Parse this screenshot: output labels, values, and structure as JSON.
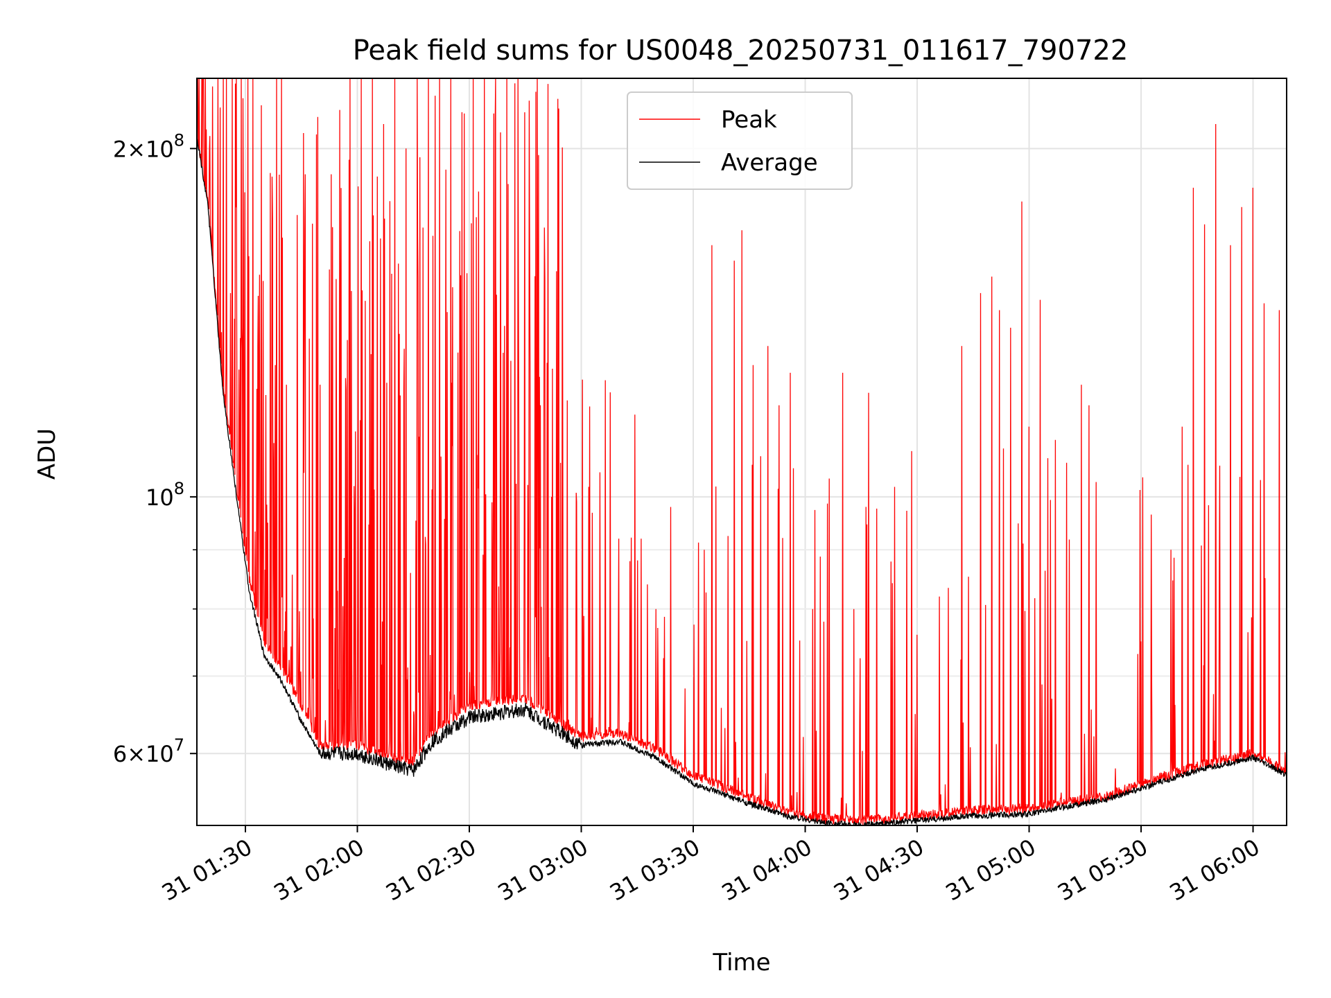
{
  "chart_data": {
    "type": "line",
    "title": "Peak field sums for US0048_20250731_011617_790722",
    "xlabel": "Time",
    "ylabel": "ADU",
    "y_scale": "log",
    "grid": true,
    "legend_position": "top-center",
    "xlim": [
      "31 01:17",
      "31 06:09"
    ],
    "ylim": [
      52000000,
      230000000
    ],
    "x_ticks": [
      "31 01:30",
      "31 02:00",
      "31 02:30",
      "31 03:00",
      "31 03:30",
      "31 04:00",
      "31 04:30",
      "31 05:00",
      "31 05:30",
      "31 06:00"
    ],
    "y_ticks": [
      {
        "value": 200000000,
        "mantissa": "2",
        "exponent": "8"
      },
      {
        "value": 100000000,
        "mantissa": "",
        "exponent": "8"
      },
      {
        "value": 60000000,
        "mantissa": "6",
        "exponent": "7"
      }
    ],
    "y_minor_ticks": [
      70000000,
      80000000,
      90000000
    ],
    "series": [
      {
        "name": "Peak",
        "color": "#ff0000",
        "note_values": "baseline samples (time, ADU) with superimposed spikes below",
        "baseline": [
          [
            "31 01:17",
            205000000
          ],
          [
            "31 01:20",
            180000000
          ],
          [
            "31 01:24",
            125000000
          ],
          [
            "31 01:28",
            100000000
          ],
          [
            "31 01:31",
            85000000
          ],
          [
            "31 01:35",
            75000000
          ],
          [
            "31 01:40",
            71000000
          ],
          [
            "31 01:45",
            66000000
          ],
          [
            "31 01:50",
            61000000
          ],
          [
            "31 02:00",
            61000000
          ],
          [
            "31 02:10",
            59500000
          ],
          [
            "31 02:15",
            59000000
          ],
          [
            "31 02:20",
            62500000
          ],
          [
            "31 02:30",
            66000000
          ],
          [
            "31 02:45",
            67000000
          ],
          [
            "31 03:00",
            62000000
          ],
          [
            "31 03:10",
            62500000
          ],
          [
            "31 03:20",
            60500000
          ],
          [
            "31 03:30",
            57500000
          ],
          [
            "31 03:45",
            55000000
          ],
          [
            "31 03:55",
            53500000
          ],
          [
            "31 04:05",
            52700000
          ],
          [
            "31 04:15",
            52500000
          ],
          [
            "31 04:30",
            53000000
          ],
          [
            "31 04:45",
            53600000
          ],
          [
            "31 05:00",
            53800000
          ],
          [
            "31 05:10",
            54500000
          ],
          [
            "31 05:20",
            55000000
          ],
          [
            "31 05:30",
            56500000
          ],
          [
            "31 05:45",
            58500000
          ],
          [
            "31 06:00",
            60000000
          ],
          [
            "31 06:09",
            58000000
          ]
        ],
        "spikes": [
          [
            "31 01:26",
            150000000
          ],
          [
            "31 01:29",
            140000000
          ],
          [
            "31 01:32",
            230000000
          ],
          [
            "31 01:38",
            130000000
          ],
          [
            "31 01:41",
            125000000
          ],
          [
            "31 01:46",
            190000000
          ],
          [
            "31 01:50",
            125000000
          ],
          [
            "31 01:53",
            190000000
          ],
          [
            "31 01:58",
            230000000
          ],
          [
            "31 02:01",
            230000000
          ],
          [
            "31 02:04",
            230000000
          ],
          [
            "31 02:07",
            210000000
          ],
          [
            "31 02:10",
            230000000
          ],
          [
            "31 02:13",
            200000000
          ],
          [
            "31 02:16",
            230000000
          ],
          [
            "31 02:19",
            230000000
          ],
          [
            "31 02:22",
            230000000
          ],
          [
            "31 02:25",
            230000000
          ],
          [
            "31 02:28",
            215000000
          ],
          [
            "31 02:31",
            230000000
          ],
          [
            "31 02:34",
            230000000
          ],
          [
            "31 02:37",
            230000000
          ],
          [
            "31 02:40",
            230000000
          ],
          [
            "31 02:43",
            230000000
          ],
          [
            "31 02:46",
            220000000
          ],
          [
            "31 02:49",
            120000000
          ],
          [
            "31 02:52",
            100000000
          ],
          [
            "31 02:55",
            115000000
          ],
          [
            "31 03:02",
            102000000
          ],
          [
            "31 03:05",
            105000000
          ],
          [
            "31 03:10",
            92000000
          ],
          [
            "31 03:13",
            88000000
          ],
          [
            "31 03:16",
            92000000
          ],
          [
            "31 03:20",
            80000000
          ],
          [
            "31 03:24",
            98000000
          ],
          [
            "31 03:33",
            90000000
          ],
          [
            "31 03:35",
            165000000
          ],
          [
            "31 03:41",
            160000000
          ],
          [
            "31 03:43",
            170000000
          ],
          [
            "31 03:46",
            130000000
          ],
          [
            "31 03:50",
            135000000
          ],
          [
            "31 03:53",
            120000000
          ],
          [
            "31 03:56",
            128000000
          ],
          [
            "31 04:02",
            80000000
          ],
          [
            "31 04:05",
            78000000
          ],
          [
            "31 04:10",
            128000000
          ],
          [
            "31 04:13",
            80000000
          ],
          [
            "31 04:17",
            123000000
          ],
          [
            "31 04:24",
            102000000
          ],
          [
            "31 04:30",
            76000000
          ],
          [
            "31 04:36",
            82000000
          ],
          [
            "31 04:42",
            135000000
          ],
          [
            "31 04:47",
            150000000
          ],
          [
            "31 04:50",
            155000000
          ],
          [
            "31 04:52",
            145000000
          ],
          [
            "31 04:55",
            140000000
          ],
          [
            "31 04:58",
            180000000
          ],
          [
            "31 05:00",
            115000000
          ],
          [
            "31 05:03",
            148000000
          ],
          [
            "31 05:05",
            108000000
          ],
          [
            "31 05:07",
            112000000
          ],
          [
            "31 05:10",
            107000000
          ],
          [
            "31 05:14",
            125000000
          ],
          [
            "31 05:16",
            120000000
          ],
          [
            "31 05:18",
            103000000
          ],
          [
            "31 05:30",
            75000000
          ],
          [
            "31 05:38",
            90000000
          ],
          [
            "31 05:41",
            115000000
          ],
          [
            "31 05:44",
            185000000
          ],
          [
            "31 05:47",
            172000000
          ],
          [
            "31 05:50",
            210000000
          ],
          [
            "31 05:54",
            165000000
          ],
          [
            "31 05:57",
            178000000
          ],
          [
            "31 06:00",
            185000000
          ],
          [
            "31 06:03",
            147000000
          ],
          [
            "31 06:07",
            145000000
          ]
        ]
      },
      {
        "name": "Average",
        "color": "#000000",
        "values": [
          [
            "31 01:17",
            205000000
          ],
          [
            "31 01:20",
            178000000
          ],
          [
            "31 01:24",
            123000000
          ],
          [
            "31 01:28",
            98000000
          ],
          [
            "31 01:31",
            83000000
          ],
          [
            "31 01:35",
            73000000
          ],
          [
            "31 01:40",
            69000000
          ],
          [
            "31 01:45",
            64000000
          ],
          [
            "31 01:50",
            60000000
          ],
          [
            "31 02:00",
            60000000
          ],
          [
            "31 02:10",
            58500000
          ],
          [
            "31 02:15",
            58000000
          ],
          [
            "31 02:20",
            61500000
          ],
          [
            "31 02:30",
            64500000
          ],
          [
            "31 02:45",
            65500000
          ],
          [
            "31 03:00",
            61000000
          ],
          [
            "31 03:10",
            61500000
          ],
          [
            "31 03:20",
            59500000
          ],
          [
            "31 03:30",
            56500000
          ],
          [
            "31 03:45",
            54300000
          ],
          [
            "31 03:55",
            53000000
          ],
          [
            "31 04:05",
            52300000
          ],
          [
            "31 04:15",
            52000000
          ],
          [
            "31 04:30",
            52500000
          ],
          [
            "31 04:45",
            53000000
          ],
          [
            "31 05:00",
            53200000
          ],
          [
            "31 05:10",
            54000000
          ],
          [
            "31 05:20",
            54700000
          ],
          [
            "31 05:30",
            56000000
          ],
          [
            "31 05:45",
            58000000
          ],
          [
            "31 06:00",
            59500000
          ],
          [
            "31 06:09",
            57500000
          ]
        ]
      }
    ]
  }
}
